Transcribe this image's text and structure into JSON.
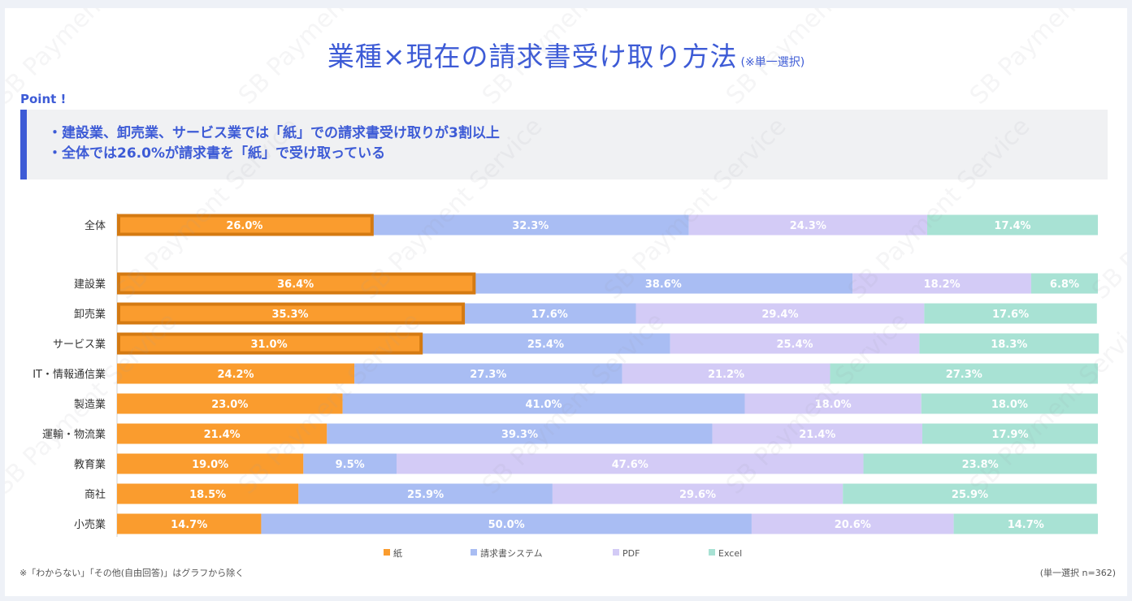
{
  "title": {
    "main": "業種×現在の請求書受け取り方法",
    "note": "(※単一選択)"
  },
  "point": {
    "label": "Point !",
    "lines": [
      "・建設業、卸売業、サービス業では「紙」での請求書受け取りが3割以上",
      "・全体では26.0%が請求書を「紙」で受け取っている"
    ]
  },
  "watermark": "SB Payment Service",
  "footnote": "※「わからない」「その他(自由回答)」はグラフから除く",
  "sample_note": "(単一選択 n=362)",
  "colors": {
    "accent": "#3d5bd6",
    "highlight_border": "#d47a12",
    "label_text": "#ffffff"
  },
  "chart_data": {
    "type": "bar",
    "orientation": "horizontal",
    "stacked": "100%",
    "categories": [
      "全体",
      "建設業",
      "卸売業",
      "サービス業",
      "IT・情報通信業",
      "製造業",
      "運輸・物流業",
      "教育業",
      "商社",
      "小売業"
    ],
    "highlighted_categories": [
      "全体",
      "建設業",
      "卸売業",
      "サービス業"
    ],
    "series": [
      {
        "name": "紙",
        "color": "#fa9c2e",
        "values": [
          26.0,
          36.4,
          35.3,
          31.0,
          24.2,
          23.0,
          21.4,
          19.0,
          18.5,
          14.7
        ]
      },
      {
        "name": "請求書システム",
        "color": "#a9bdf3",
        "values": [
          32.3,
          38.6,
          17.6,
          25.4,
          27.3,
          41.0,
          39.3,
          9.5,
          25.9,
          50.0
        ]
      },
      {
        "name": "PDF",
        "color": "#d3cbf6",
        "values": [
          24.3,
          18.2,
          29.4,
          25.4,
          21.2,
          18.0,
          21.4,
          47.6,
          29.6,
          20.6
        ]
      },
      {
        "name": "Excel",
        "color": "#a8e2d4",
        "values": [
          17.4,
          6.8,
          17.6,
          18.3,
          27.3,
          18.0,
          17.9,
          23.8,
          25.9,
          14.7
        ]
      }
    ],
    "value_format": "%",
    "legend_position": "bottom",
    "grid": false
  }
}
